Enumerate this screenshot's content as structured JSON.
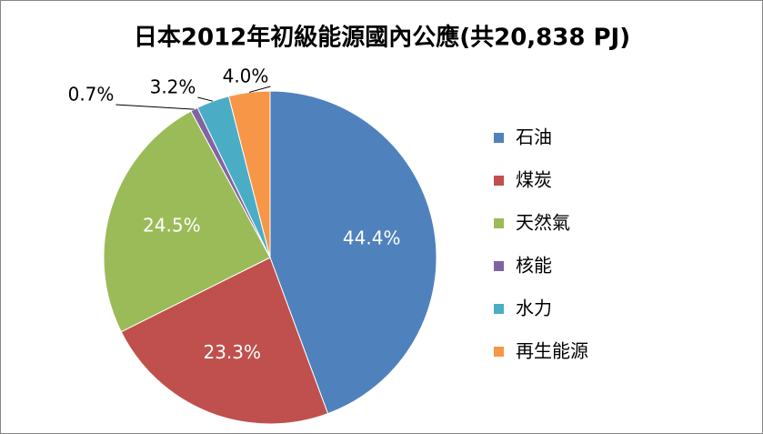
{
  "chart_data": {
    "type": "pie",
    "title": "日本2012年初級能源國內公應(共20,838 PJ)",
    "categories": [
      "石油",
      "煤炭",
      "天然氣",
      "核能",
      "水力",
      "再生能源"
    ],
    "values": [
      44.4,
      23.3,
      24.5,
      0.7,
      3.2,
      4.0
    ],
    "value_labels": [
      "44.4%",
      "23.3%",
      "24.5%",
      "0.7%",
      "3.2%",
      "4.0%"
    ],
    "colors": [
      "#4f81bd",
      "#c0504d",
      "#9bbb59",
      "#8064a2",
      "#4bacc6",
      "#f79646"
    ],
    "legend": "right"
  }
}
